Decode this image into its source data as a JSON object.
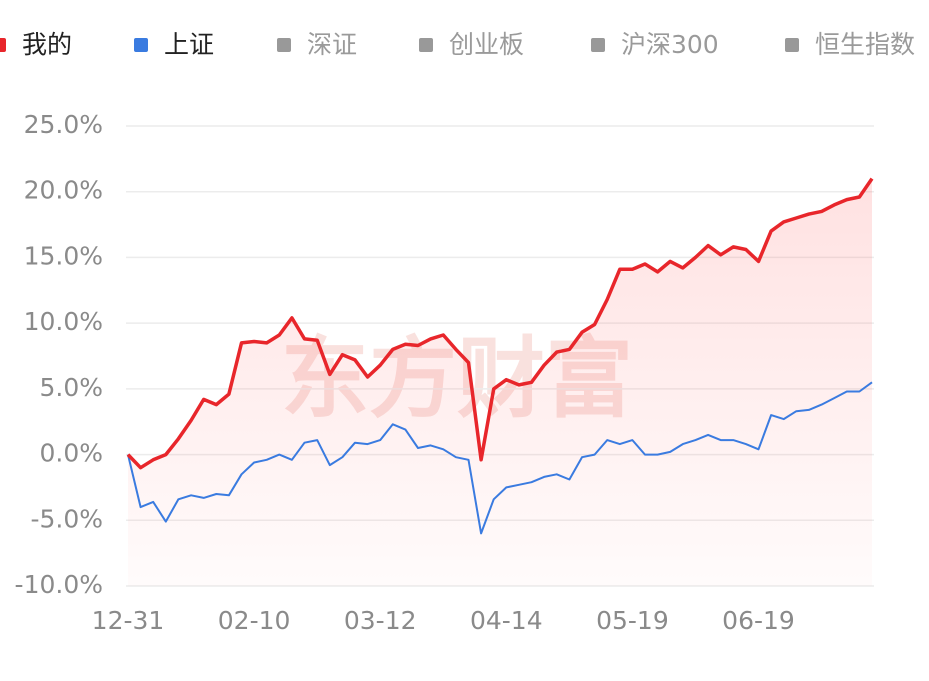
{
  "chart_data": {
    "type": "line",
    "watermark": "东方财富",
    "categories": [
      "12-31",
      null,
      null,
      null,
      null,
      null,
      null,
      null,
      null,
      null,
      "02-10",
      null,
      null,
      null,
      null,
      null,
      null,
      null,
      null,
      null,
      "03-12",
      null,
      null,
      null,
      null,
      null,
      null,
      null,
      null,
      null,
      "04-14",
      null,
      null,
      null,
      null,
      null,
      null,
      null,
      null,
      null,
      "05-19",
      null,
      null,
      null,
      null,
      null,
      null,
      null,
      null,
      null,
      "06-19",
      null,
      null,
      null,
      null,
      null,
      null,
      null,
      null,
      null
    ],
    "series": [
      {
        "name": "我的",
        "color": "#e8262b",
        "area": true,
        "values": [
          0.0,
          -1.0,
          -0.4,
          0.0,
          1.2,
          2.6,
          4.2,
          3.8,
          4.6,
          8.5,
          8.6,
          8.5,
          9.1,
          10.4,
          8.8,
          8.7,
          6.1,
          7.6,
          7.2,
          5.9,
          6.8,
          8.0,
          8.4,
          8.3,
          8.8,
          9.1,
          8.0,
          7.0,
          -0.4,
          5.0,
          5.7,
          5.3,
          5.5,
          6.8,
          7.8,
          8.0,
          9.3,
          9.9,
          11.8,
          14.1,
          14.1,
          14.5,
          13.9,
          14.7,
          14.2,
          15.0,
          15.9,
          15.2,
          15.8,
          15.6,
          14.7,
          17.0,
          17.7,
          18.0,
          18.3,
          18.5,
          19.0,
          19.4,
          19.6,
          21.0
        ]
      },
      {
        "name": "上证",
        "color": "#3a7be0",
        "values": [
          0.0,
          -4.0,
          -3.6,
          -5.1,
          -3.4,
          -3.1,
          -3.3,
          -3.0,
          -3.1,
          -1.5,
          -0.6,
          -0.4,
          0.0,
          -0.4,
          0.9,
          1.1,
          -0.8,
          -0.2,
          0.9,
          0.8,
          1.1,
          2.3,
          1.9,
          0.5,
          0.7,
          0.4,
          -0.2,
          -0.4,
          -6.0,
          -3.4,
          -2.5,
          -2.3,
          -2.1,
          -1.7,
          -1.5,
          -1.9,
          -0.2,
          0.0,
          1.1,
          0.8,
          1.1,
          0.0,
          0.0,
          0.2,
          0.8,
          1.1,
          1.5,
          1.1,
          1.1,
          0.8,
          0.4,
          3.0,
          2.7,
          3.3,
          3.4,
          3.8,
          4.3,
          4.8,
          4.8,
          5.5
        ]
      }
    ],
    "inactive_series": [
      {
        "name": "深证",
        "color": "#999999"
      },
      {
        "name": "创业板",
        "color": "#999999"
      },
      {
        "name": "沪深300",
        "color": "#999999"
      },
      {
        "name": "恒生指数",
        "color": "#999999"
      }
    ],
    "ylim": [
      -10,
      25
    ],
    "yticks": [
      {
        "value": -10,
        "label": "-10.0%"
      },
      {
        "value": -5,
        "label": "-5.0%"
      },
      {
        "value": 0,
        "label": "0.0%"
      },
      {
        "value": 5,
        "label": "5.0%"
      },
      {
        "value": 10,
        "label": "10.0%"
      },
      {
        "value": 15,
        "label": "15.0%"
      },
      {
        "value": 20,
        "label": "20.0%"
      },
      {
        "value": 25,
        "label": "25.0%"
      }
    ],
    "grid": true
  }
}
